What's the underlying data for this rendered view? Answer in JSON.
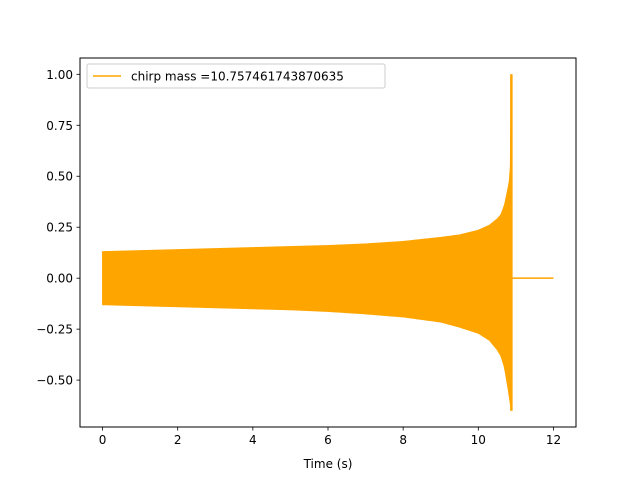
{
  "chart_data": {
    "type": "line",
    "title": "",
    "xlabel": "Time (s)",
    "ylabel": "",
    "xlim": [
      -0.6,
      12.6
    ],
    "ylim": [
      -0.73,
      1.08
    ],
    "x_ticks": [
      0,
      2,
      4,
      6,
      8,
      10,
      12
    ],
    "y_ticks": [
      -0.5,
      -0.25,
      0.0,
      0.25,
      0.5,
      0.75,
      1.0
    ],
    "x_tick_labels": [
      "0",
      "2",
      "4",
      "6",
      "8",
      "10",
      "12"
    ],
    "y_tick_labels": [
      "−0.50",
      "−0.25",
      "0.00",
      "0.25",
      "0.50",
      "0.75",
      "1.00"
    ],
    "grid": false,
    "legend_position": "top-left",
    "series": [
      {
        "name": "chirp mass =10.757461743870635",
        "color": "#ffa500",
        "upper_envelope": [
          [
            0.0,
            0.13
          ],
          [
            1.0,
            0.135
          ],
          [
            2.0,
            0.14
          ],
          [
            3.0,
            0.145
          ],
          [
            4.0,
            0.15
          ],
          [
            5.0,
            0.155
          ],
          [
            6.0,
            0.16
          ],
          [
            7.0,
            0.168
          ],
          [
            8.0,
            0.18
          ],
          [
            9.0,
            0.2
          ],
          [
            9.5,
            0.212
          ],
          [
            10.0,
            0.235
          ],
          [
            10.3,
            0.26
          ],
          [
            10.5,
            0.29
          ],
          [
            10.6,
            0.31
          ],
          [
            10.7,
            0.36
          ],
          [
            10.8,
            0.45
          ],
          [
            10.85,
            0.5
          ],
          [
            10.88,
            1.0
          ]
        ],
        "lower_envelope": [
          [
            0.0,
            -0.13
          ],
          [
            1.0,
            -0.135
          ],
          [
            2.0,
            -0.14
          ],
          [
            3.0,
            -0.145
          ],
          [
            4.0,
            -0.15
          ],
          [
            5.0,
            -0.155
          ],
          [
            6.0,
            -0.163
          ],
          [
            7.0,
            -0.175
          ],
          [
            8.0,
            -0.19
          ],
          [
            9.0,
            -0.215
          ],
          [
            9.5,
            -0.24
          ],
          [
            10.0,
            -0.27
          ],
          [
            10.3,
            -0.305
          ],
          [
            10.5,
            -0.35
          ],
          [
            10.6,
            -0.38
          ],
          [
            10.7,
            -0.44
          ],
          [
            10.8,
            -0.55
          ],
          [
            10.88,
            -0.65
          ]
        ],
        "ringdown_end_x": 10.92,
        "tail": [
          [
            10.92,
            0.0
          ],
          [
            12.0,
            0.0
          ]
        ]
      }
    ]
  }
}
